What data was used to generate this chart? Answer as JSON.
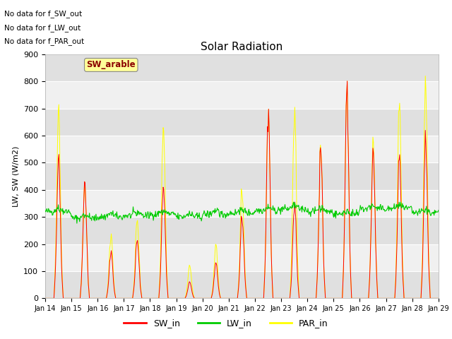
{
  "title": "Solar Radiation",
  "ylabel": "LW, SW (W/m2)",
  "ylim": [
    0,
    900
  ],
  "yticks": [
    0,
    100,
    200,
    300,
    400,
    500,
    600,
    700,
    800,
    900
  ],
  "xtick_labels": [
    "Jan 14",
    "Jan 15",
    "Jan 16",
    "Jan 17",
    "Jan 18",
    "Jan 19",
    "Jan 20",
    "Jan 21",
    "Jan 22",
    "Jan 23",
    "Jan 24",
    "Jan 25",
    "Jan 26",
    "Jan 27",
    "Jan 28",
    "Jan 29"
  ],
  "annotations": [
    "No data for f_SW_out",
    "No data for f_LW_out",
    "No data for f_PAR_out"
  ],
  "legend_label": "SW_arable",
  "sw_color": "#ff0000",
  "lw_color": "#00cc00",
  "par_color": "#ffff00",
  "band_color_light": "#f0f0f0",
  "band_color_dark": "#e0e0e0",
  "title_fontsize": 11,
  "axis_fontsize": 8,
  "legend_fontsize": 9
}
